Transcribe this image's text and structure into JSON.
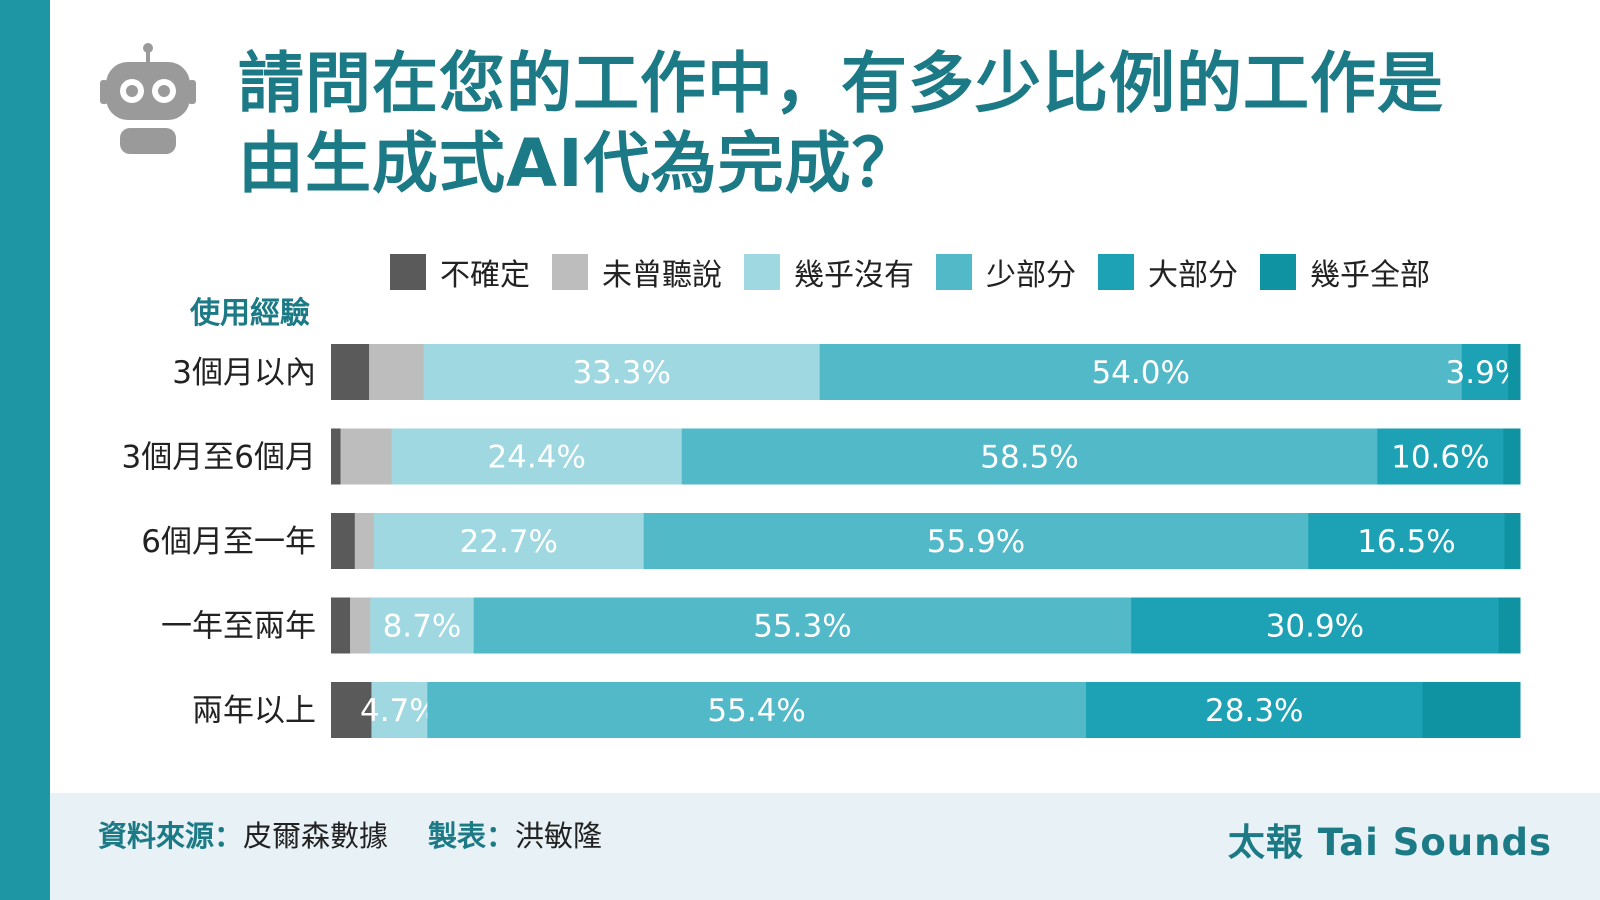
{
  "title_lines": [
    "請問在您的工作中，有多少比例的工作是",
    "由生成式AI代為完成？"
  ],
  "axis_title": "使用經驗",
  "legend": [
    {
      "label": "不確定",
      "color": "#5a5a5a"
    },
    {
      "label": "未曾聽說",
      "color": "#bdbdbd"
    },
    {
      "label": "幾乎沒有",
      "color": "#9fd8e1"
    },
    {
      "label": "少部分",
      "color": "#52b9c8"
    },
    {
      "label": "大部分",
      "color": "#1ca2b4"
    },
    {
      "label": "幾乎全部",
      "color": "#0f93a3"
    }
  ],
  "chart_data": {
    "type": "bar",
    "orientation": "horizontal",
    "stacked": true,
    "categories": [
      "3個月以內",
      "3個月至6個月",
      "6個月至一年",
      "一年至兩年",
      "兩年以上"
    ],
    "series": [
      {
        "name": "不確定",
        "values": [
          3.2,
          0.8,
          2.0,
          1.6,
          3.4
        ]
      },
      {
        "name": "未曾聽說",
        "values": [
          4.6,
          4.3,
          1.6,
          1.7,
          0.0
        ]
      },
      {
        "name": "幾乎沒有",
        "values": [
          33.3,
          24.4,
          22.7,
          8.7,
          4.7
        ]
      },
      {
        "name": "少部分",
        "values": [
          54.0,
          58.5,
          55.9,
          55.3,
          55.4
        ]
      },
      {
        "name": "大部分",
        "values": [
          3.9,
          10.6,
          16.5,
          30.9,
          28.3
        ]
      },
      {
        "name": "幾乎全部",
        "values": [
          1.0,
          1.4,
          1.3,
          1.8,
          8.2
        ]
      }
    ],
    "data_labels": [
      [
        null,
        null,
        "33.3%",
        "54.0%",
        "3.9%",
        null
      ],
      [
        null,
        null,
        "24.4%",
        "58.5%",
        "10.6%",
        null
      ],
      [
        null,
        null,
        "22.7%",
        "55.9%",
        "16.5%",
        null
      ],
      [
        null,
        null,
        "8.7%",
        "55.3%",
        "30.9%",
        null
      ],
      [
        null,
        null,
        "4.7%",
        "55.4%",
        "28.3%",
        null
      ]
    ],
    "xlim": [
      0,
      100
    ],
    "legend_position": "top"
  },
  "footer": {
    "source_label": "資料來源：",
    "source_value": "皮爾森數據",
    "maker_label": "製表：",
    "maker_value": "洪敏隆",
    "brand": "太報 Tai Sounds"
  }
}
